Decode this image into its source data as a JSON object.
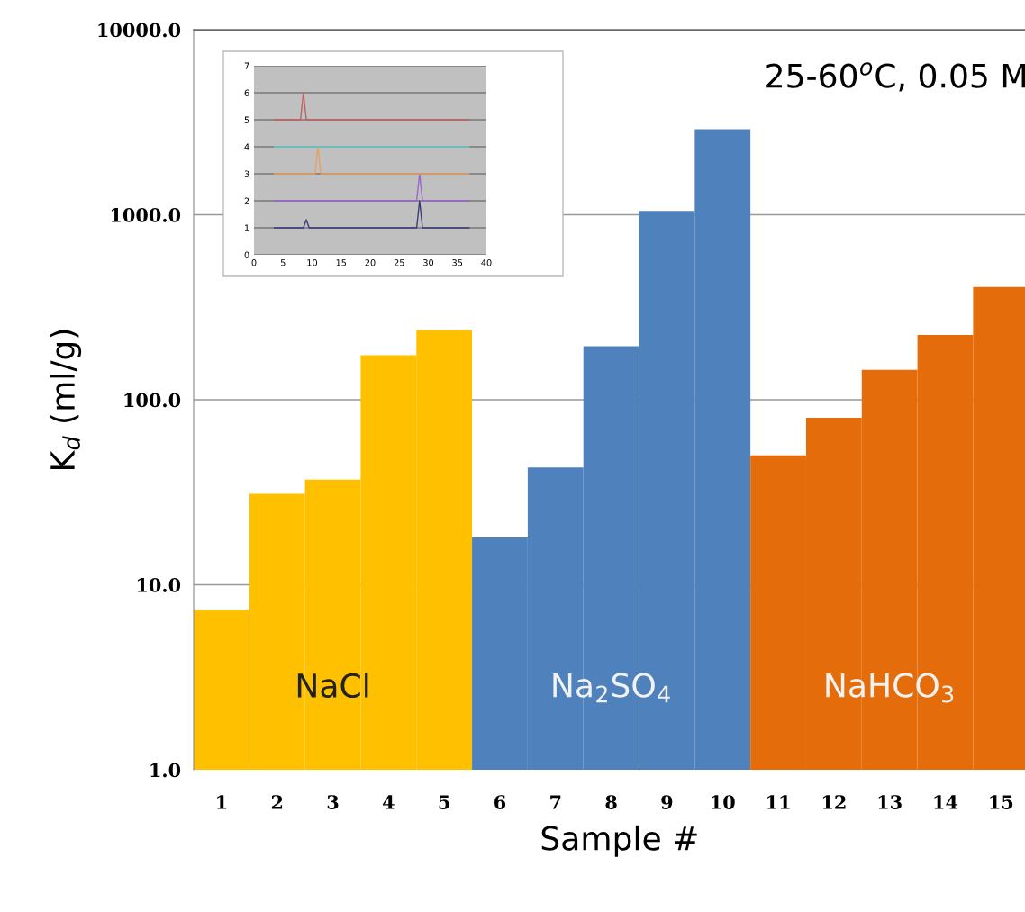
{
  "chart_data": [
    {
      "type": "bar",
      "title": "25-60$^{o}$C, 0.05 M",
      "xlabel": "Sample #",
      "ylabel": "K$_{d}$ (ml/g)",
      "categories": [
        "1",
        "2",
        "3",
        "4",
        "5",
        "6",
        "7",
        "8",
        "9",
        "10",
        "11",
        "12",
        "13",
        "14",
        "15"
      ],
      "values": [
        7.3,
        31,
        37,
        174,
        238,
        18,
        43,
        195,
        1050,
        2900,
        50,
        80,
        145,
        224,
        407
      ],
      "colors": [
        "#ffc000",
        "#ffc000",
        "#ffc000",
        "#ffc000",
        "#ffc000",
        "#4f81bd",
        "#4f81bd",
        "#4f81bd",
        "#4f81bd",
        "#4f81bd",
        "#e46c0a",
        "#e46c0a",
        "#e46c0a",
        "#e46c0a",
        "#e46c0a"
      ],
      "log": "y",
      "ylim": [
        1,
        10000
      ],
      "yticks": [
        {
          "value": 1,
          "label": "1.0"
        },
        {
          "value": 10,
          "label": "10.0"
        },
        {
          "value": 100,
          "label": "100.0"
        },
        {
          "value": 1000,
          "label": "1000.0"
        },
        {
          "value": 10000,
          "label": "10000.0"
        }
      ],
      "grid": "y",
      "annotations": [
        "NaCl",
        "Na$_{2}$SO$_{4}$",
        "NaHCO$_{3}$"
      ]
    },
    {
      "type": "line",
      "xlim": [
        0,
        40
      ],
      "ylim": [
        0,
        7
      ],
      "xticks": [
        0,
        5,
        10,
        15,
        20,
        25,
        30,
        35,
        40
      ],
      "yticks": [
        0,
        1,
        2,
        3,
        4,
        5,
        6,
        7
      ],
      "grid": "y",
      "series": [
        {
          "color": "#3a3a7a",
          "x": [
            3.5,
            8.5,
            9,
            9.5,
            28,
            28.5,
            29,
            37
          ],
          "values": [
            1,
            1,
            1.3,
            1,
            1,
            2,
            1,
            1
          ]
        },
        {
          "color": "#9966cc",
          "x": [
            3.5,
            28,
            28.5,
            29,
            37
          ],
          "values": [
            2,
            2,
            3,
            2,
            2
          ]
        },
        {
          "color": "#e8a060",
          "x": [
            3.5,
            10.5,
            11,
            11.5,
            37
          ],
          "values": [
            3,
            3,
            4,
            3,
            3
          ]
        },
        {
          "color": "#66cccc",
          "x": [
            3.5,
            37
          ],
          "values": [
            4,
            4
          ]
        },
        {
          "color": "#c06060",
          "x": [
            3.5,
            8,
            8.5,
            9,
            37
          ],
          "values": [
            5,
            5,
            6,
            5,
            5
          ]
        }
      ]
    }
  ]
}
